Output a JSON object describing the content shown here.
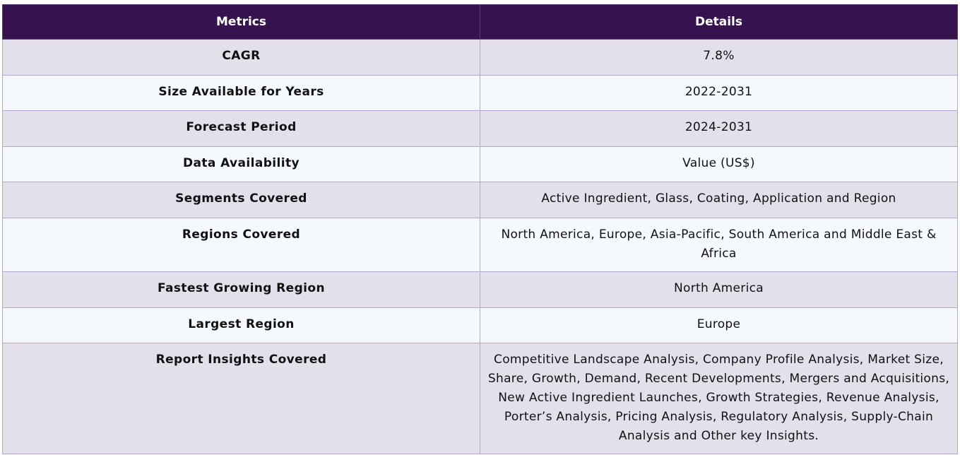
{
  "table": {
    "headers": {
      "metrics": "Metrics",
      "details": "Details"
    },
    "rows": [
      {
        "metric": "CAGR",
        "detail": "7.8%"
      },
      {
        "metric": "Size Available for Years",
        "detail": "2022-2031"
      },
      {
        "metric": "Forecast Period",
        "detail": "2024-2031"
      },
      {
        "metric": "Data Availability",
        "detail": "Value (US$)"
      },
      {
        "metric": "Segments Covered",
        "detail": "Active Ingredient, Glass, Coating, Application and Region"
      },
      {
        "metric": "Regions Covered",
        "detail": "North America, Europe, Asia-Pacific, South America and Middle East & Africa"
      },
      {
        "metric": "Fastest Growing Region",
        "detail": "North America"
      },
      {
        "metric": "Largest Region",
        "detail": "Europe"
      },
      {
        "metric": "Report Insights Covered",
        "detail": "Competitive Landscape Analysis, Company Profile Analysis, Market Size, Share, Growth, Demand, Recent Developments, Mergers and Acquisitions, New Active Ingredient Launches, Growth Strategies, Revenue Analysis, Porter’s Analysis, Pricing Analysis, Regulatory Analysis, Supply-Chain Analysis and Other key Insights."
      }
    ]
  },
  "colors": {
    "header_bg": "#36124e",
    "row_odd_bg": "#e3dfeb",
    "row_even_bg": "#f5f9fd",
    "border": "#b3a9cf"
  }
}
